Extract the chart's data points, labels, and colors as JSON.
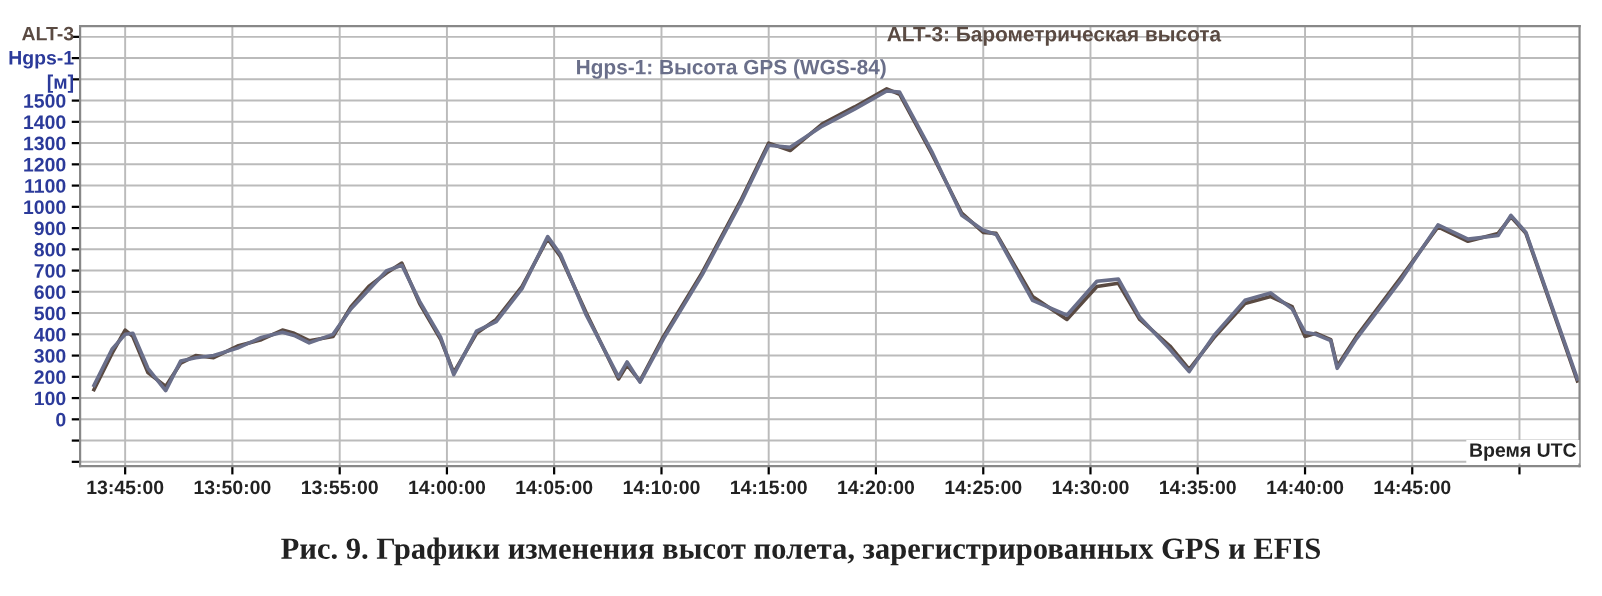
{
  "chart_data": {
    "type": "line",
    "ylabel": "ALT-3\nHgps-1\n[м]",
    "xlabel": "Время UTC",
    "annotations": [
      "Рис. 9. Графики изменения высот полета, зарегистрированных GPS и EFIS"
    ],
    "x": [
      13.7258,
      13.7398,
      13.75,
      13.756,
      13.7677,
      13.7815,
      13.7932,
      13.8048,
      13.8187,
      13.8373,
      13.8558,
      13.8722,
      13.8813,
      13.893,
      13.9115,
      13.9255,
      13.9393,
      13.9533,
      13.965,
      13.9788,
      13.9952,
      14.0053,
      14.023,
      14.0383,
      14.0583,
      14.0783,
      14.0883,
      14.1083,
      14.1333,
      14.14,
      14.15,
      14.1683,
      14.1983,
      14.2283,
      14.25,
      14.2667,
      14.2917,
      14.3167,
      14.3417,
      14.3517,
      14.3767,
      14.4,
      14.4167,
      14.4267,
      14.455,
      14.4817,
      14.505,
      14.5217,
      14.5383,
      14.5617,
      14.5767,
      14.5967,
      14.62,
      14.64,
      14.6567,
      14.6667,
      14.675,
      14.6867,
      14.6917,
      14.7067,
      14.7417,
      14.77,
      14.7933,
      14.8167,
      14.8267,
      14.8383,
      14.8783
    ],
    "series": [
      {
        "name": "ALT-3: Барометрическая высота",
        "color": "#5a4a42",
        "values": [
          140,
          310,
          420,
          390,
          220,
          155,
          265,
          300,
          290,
          345,
          375,
          420,
          405,
          370,
          390,
          530,
          625,
          690,
          735,
          545,
          375,
          220,
          405,
          470,
          625,
          850,
          765,
          500,
          190,
          255,
          180,
          390,
          690,
          1030,
          1300,
          1265,
          1390,
          1470,
          1555,
          1530,
          1250,
          970,
          880,
          875,
          578,
          470,
          625,
          640,
          470,
          345,
          235,
          390,
          545,
          578,
          530,
          390,
          405,
          375,
          250,
          390,
          672,
          906,
          838,
          875,
          953,
          875,
          181
        ]
      },
      {
        "name": "Hgps-1: Высота GPS (WGS-84)",
        "color": "#6a6f8a",
        "values": [
          160,
          330,
          400,
          405,
          240,
          135,
          275,
          290,
          300,
          335,
          385,
          410,
          395,
          360,
          400,
          520,
          610,
          700,
          725,
          555,
          385,
          210,
          415,
          460,
          615,
          860,
          775,
          490,
          200,
          270,
          175,
          380,
          680,
          1020,
          1290,
          1280,
          1380,
          1460,
          1545,
          1540,
          1260,
          960,
          890,
          870,
          560,
          490,
          650,
          660,
          480,
          330,
          225,
          400,
          560,
          595,
          520,
          410,
          400,
          370,
          240,
          380,
          660,
          915,
          848,
          865,
          960,
          880,
          190
        ]
      }
    ],
    "xlim": [
      13.715,
      14.88
    ],
    "xticks": [
      {
        "value": 13.75,
        "label": "13:45:00"
      },
      {
        "value": 13.8333,
        "label": "13:50:00"
      },
      {
        "value": 13.9167,
        "label": "13:55:00"
      },
      {
        "value": 14.0,
        "label": "14:00:00"
      },
      {
        "value": 14.0833,
        "label": "14:05:00"
      },
      {
        "value": 14.1667,
        "label": "14:10:00"
      },
      {
        "value": 14.25,
        "label": "14:15:00"
      },
      {
        "value": 14.3333,
        "label": "14:20:00"
      },
      {
        "value": 14.4167,
        "label": "14:25:00"
      },
      {
        "value": 14.5,
        "label": "14:30:00"
      },
      {
        "value": 14.5833,
        "label": "14:35:00"
      },
      {
        "value": 14.6667,
        "label": "14:40:00"
      },
      {
        "value": 14.75,
        "label": "14:45:00"
      },
      {
        "value": 14.8333,
        "label": null
      }
    ],
    "ylim": [
      -220,
      1850
    ],
    "yticks": [
      0,
      100,
      200,
      300,
      400,
      500,
      600,
      700,
      800,
      900,
      1000,
      1100,
      1200,
      1300,
      1400,
      1500,
      {
        "value": -100,
        "label": null
      },
      {
        "value": -200,
        "label": null
      },
      {
        "value": 1600,
        "label": null
      },
      {
        "value": 1700,
        "label": null
      },
      {
        "value": 1800,
        "label": null
      }
    ],
    "grid": true,
    "legend": false,
    "line_style": "solid",
    "marker": "none"
  }
}
